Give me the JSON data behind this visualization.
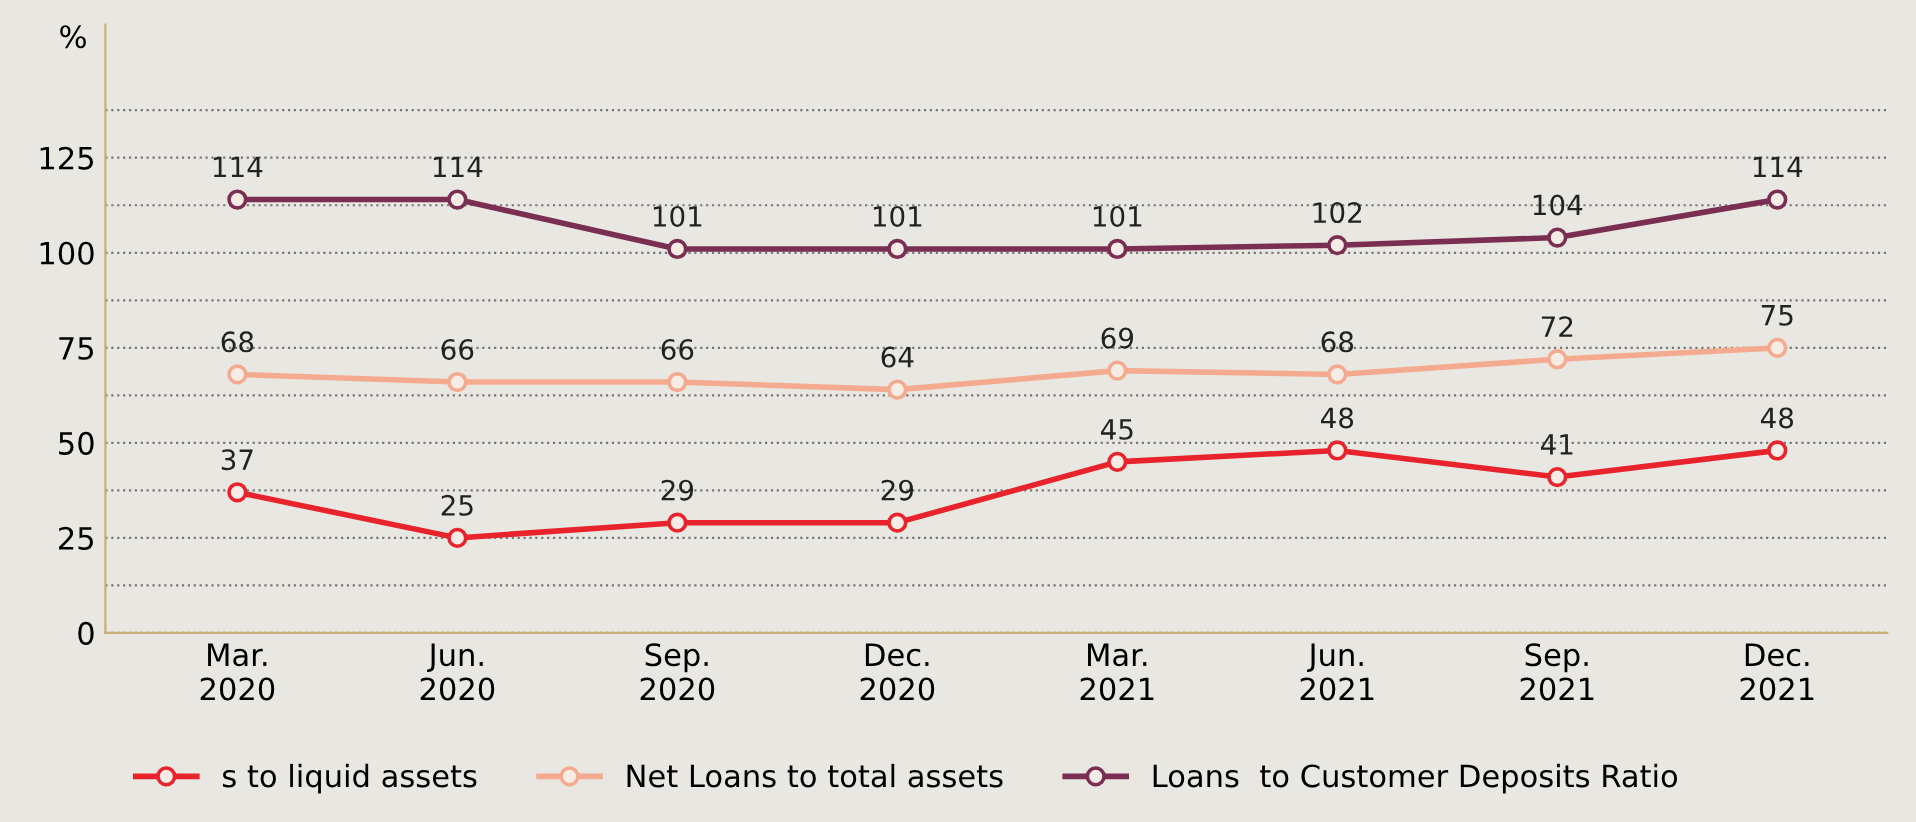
{
  "chart_data": {
    "type": "line",
    "ylabel": "%",
    "categories": [
      "Mar.\n2020",
      "Jun.\n2020",
      "Sep.\n2020",
      "Dec.\n2020",
      "Mar.\n2021",
      "Jun.\n2021",
      "Sep.\n2021",
      "Dec.\n2021"
    ],
    "series": [
      {
        "name": "s to liquid assets",
        "color": "#e8232b",
        "values": [
          37,
          25,
          29,
          29,
          45,
          48,
          41,
          48
        ]
      },
      {
        "name": "Net Loans to total assets",
        "color": "#f4aa8e",
        "values": [
          68,
          66,
          66,
          64,
          69,
          68,
          72,
          75
        ]
      },
      {
        "name": "Loans  to Customer Deposits Ratio",
        "color": "#7a2e52",
        "values": [
          114,
          114,
          101,
          101,
          101,
          102,
          104,
          114
        ]
      }
    ],
    "ylim": [
      0,
      160
    ],
    "yticks": [
      0,
      {
        "value": 12.5,
        "label": null
      },
      25,
      {
        "value": 37.5,
        "label": null
      },
      50,
      {
        "value": 62.5,
        "label": null
      },
      75,
      {
        "value": 87.5,
        "label": null
      },
      100,
      {
        "value": 112.5,
        "label": null
      },
      125,
      {
        "value": 137.5,
        "label": null
      }
    ],
    "grid": "y",
    "legend": "bottom",
    "marker": "circle",
    "line_style": "solid",
    "data_labels": true
  }
}
